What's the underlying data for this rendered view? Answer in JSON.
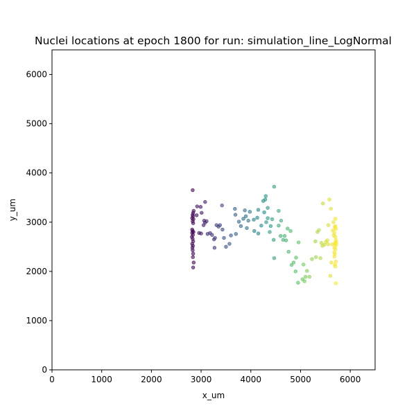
{
  "chart_data": {
    "type": "scatter",
    "title": "Nuclei locations at epoch 1800 for run: simulation_line_LogNormal",
    "xlabel": "x_um",
    "ylabel": "y_um",
    "xlim": [
      0,
      6500
    ],
    "ylim": [
      0,
      6500
    ],
    "xticks": [
      0,
      1000,
      2000,
      3000,
      4000,
      5000,
      6000
    ],
    "yticks": [
      0,
      1000,
      2000,
      3000,
      4000,
      5000,
      6000
    ],
    "grid": false,
    "legend": "none",
    "colormap": "viridis",
    "color_by": "x",
    "color_range": [
      2780,
      5720
    ],
    "marker_alpha": 0.6,
    "points": [
      [
        2830,
        3650
      ],
      [
        2850,
        3230
      ],
      [
        2840,
        3190
      ],
      [
        2830,
        3150
      ],
      [
        2835,
        3120
      ],
      [
        2820,
        3080
      ],
      [
        2845,
        3060
      ],
      [
        2830,
        3020
      ],
      [
        2840,
        2980
      ],
      [
        2820,
        2850
      ],
      [
        2830,
        2820
      ],
      [
        2845,
        2800
      ],
      [
        2820,
        2780
      ],
      [
        2835,
        2740
      ],
      [
        2815,
        2700
      ],
      [
        2830,
        2660
      ],
      [
        2840,
        2610
      ],
      [
        2820,
        2560
      ],
      [
        2835,
        2520
      ],
      [
        2825,
        2480
      ],
      [
        2830,
        2430
      ],
      [
        2840,
        2360
      ],
      [
        2835,
        2290
      ],
      [
        2850,
        2180
      ],
      [
        2840,
        2080
      ],
      [
        2920,
        3320
      ],
      [
        2990,
        3310
      ],
      [
        3080,
        3410
      ],
      [
        3010,
        3190
      ],
      [
        2910,
        3140
      ],
      [
        3060,
        3030
      ],
      [
        3080,
        2990
      ],
      [
        3110,
        3020
      ],
      [
        3050,
        2940
      ],
      [
        2960,
        2780
      ],
      [
        3000,
        2770
      ],
      [
        3130,
        2760
      ],
      [
        3180,
        2780
      ],
      [
        3220,
        2740
      ],
      [
        3280,
        2680
      ],
      [
        3260,
        2650
      ],
      [
        3270,
        2480
      ],
      [
        3350,
        2910
      ],
      [
        3310,
        2940
      ],
      [
        3380,
        2940
      ],
      [
        3420,
        3340
      ],
      [
        3430,
        2850
      ],
      [
        3460,
        2680
      ],
      [
        3500,
        2500
      ],
      [
        3570,
        2560
      ],
      [
        3600,
        2730
      ],
      [
        3700,
        2760
      ],
      [
        3690,
        3150
      ],
      [
        3680,
        3270
      ],
      [
        3760,
        3010
      ],
      [
        3800,
        2920
      ],
      [
        3850,
        3070
      ],
      [
        3880,
        3240
      ],
      [
        3900,
        3120
      ],
      [
        3920,
        2880
      ],
      [
        3950,
        3030
      ],
      [
        3980,
        3210
      ],
      [
        4060,
        3050
      ],
      [
        4070,
        2820
      ],
      [
        4130,
        3090
      ],
      [
        4150,
        3250
      ],
      [
        4150,
        2770
      ],
      [
        4210,
        2930
      ],
      [
        4250,
        3430
      ],
      [
        4270,
        3200
      ],
      [
        4290,
        3460
      ],
      [
        4300,
        3530
      ],
      [
        4310,
        3000
      ],
      [
        4340,
        3080
      ],
      [
        4340,
        3290
      ],
      [
        4380,
        2800
      ],
      [
        4400,
        2920
      ],
      [
        4430,
        3060
      ],
      [
        4460,
        2640
      ],
      [
        4470,
        3720
      ],
      [
        4470,
        2270
      ],
      [
        4560,
        2930
      ],
      [
        4560,
        3230
      ],
      [
        4600,
        2720
      ],
      [
        4610,
        3030
      ],
      [
        4650,
        2640
      ],
      [
        4680,
        2720
      ],
      [
        4710,
        2630
      ],
      [
        4740,
        2870
      ],
      [
        4760,
        2400
      ],
      [
        4800,
        2820
      ],
      [
        4820,
        2130
      ],
      [
        4860,
        2180
      ],
      [
        4900,
        2000
      ],
      [
        4910,
        2280
      ],
      [
        4950,
        1770
      ],
      [
        4960,
        2590
      ],
      [
        5040,
        1840
      ],
      [
        5060,
        2140
      ],
      [
        5080,
        1800
      ],
      [
        5100,
        1890
      ],
      [
        5130,
        2010
      ],
      [
        5180,
        1890
      ],
      [
        5230,
        2250
      ],
      [
        5300,
        2610
      ],
      [
        5310,
        2290
      ],
      [
        5340,
        2800
      ],
      [
        5370,
        2840
      ],
      [
        5400,
        2270
      ],
      [
        5420,
        2580
      ],
      [
        5440,
        2520
      ],
      [
        5450,
        3380
      ],
      [
        5480,
        2540
      ],
      [
        5510,
        2600
      ],
      [
        5540,
        2630
      ],
      [
        5560,
        2940
      ],
      [
        5560,
        2550
      ],
      [
        5580,
        3460
      ],
      [
        5600,
        1910
      ],
      [
        5610,
        3270
      ],
      [
        5620,
        2180
      ],
      [
        5640,
        2550
      ],
      [
        5650,
        2830
      ],
      [
        5660,
        3000
      ],
      [
        5670,
        2730
      ],
      [
        5680,
        2480
      ],
      [
        5680,
        2300
      ],
      [
        5690,
        2560
      ],
      [
        5700,
        3070
      ],
      [
        5700,
        2920
      ],
      [
        5710,
        2860
      ],
      [
        5710,
        2640
      ],
      [
        5715,
        2530
      ],
      [
        5680,
        2390
      ],
      [
        5690,
        2140
      ],
      [
        5700,
        2100
      ],
      [
        5710,
        2200
      ],
      [
        5700,
        2700
      ],
      [
        5705,
        2600
      ],
      [
        5690,
        2900
      ],
      [
        5710,
        1760
      ],
      [
        5690,
        2350
      ],
      [
        5700,
        2450
      ],
      [
        5720,
        2580
      ],
      [
        5680,
        2780
      ]
    ]
  }
}
